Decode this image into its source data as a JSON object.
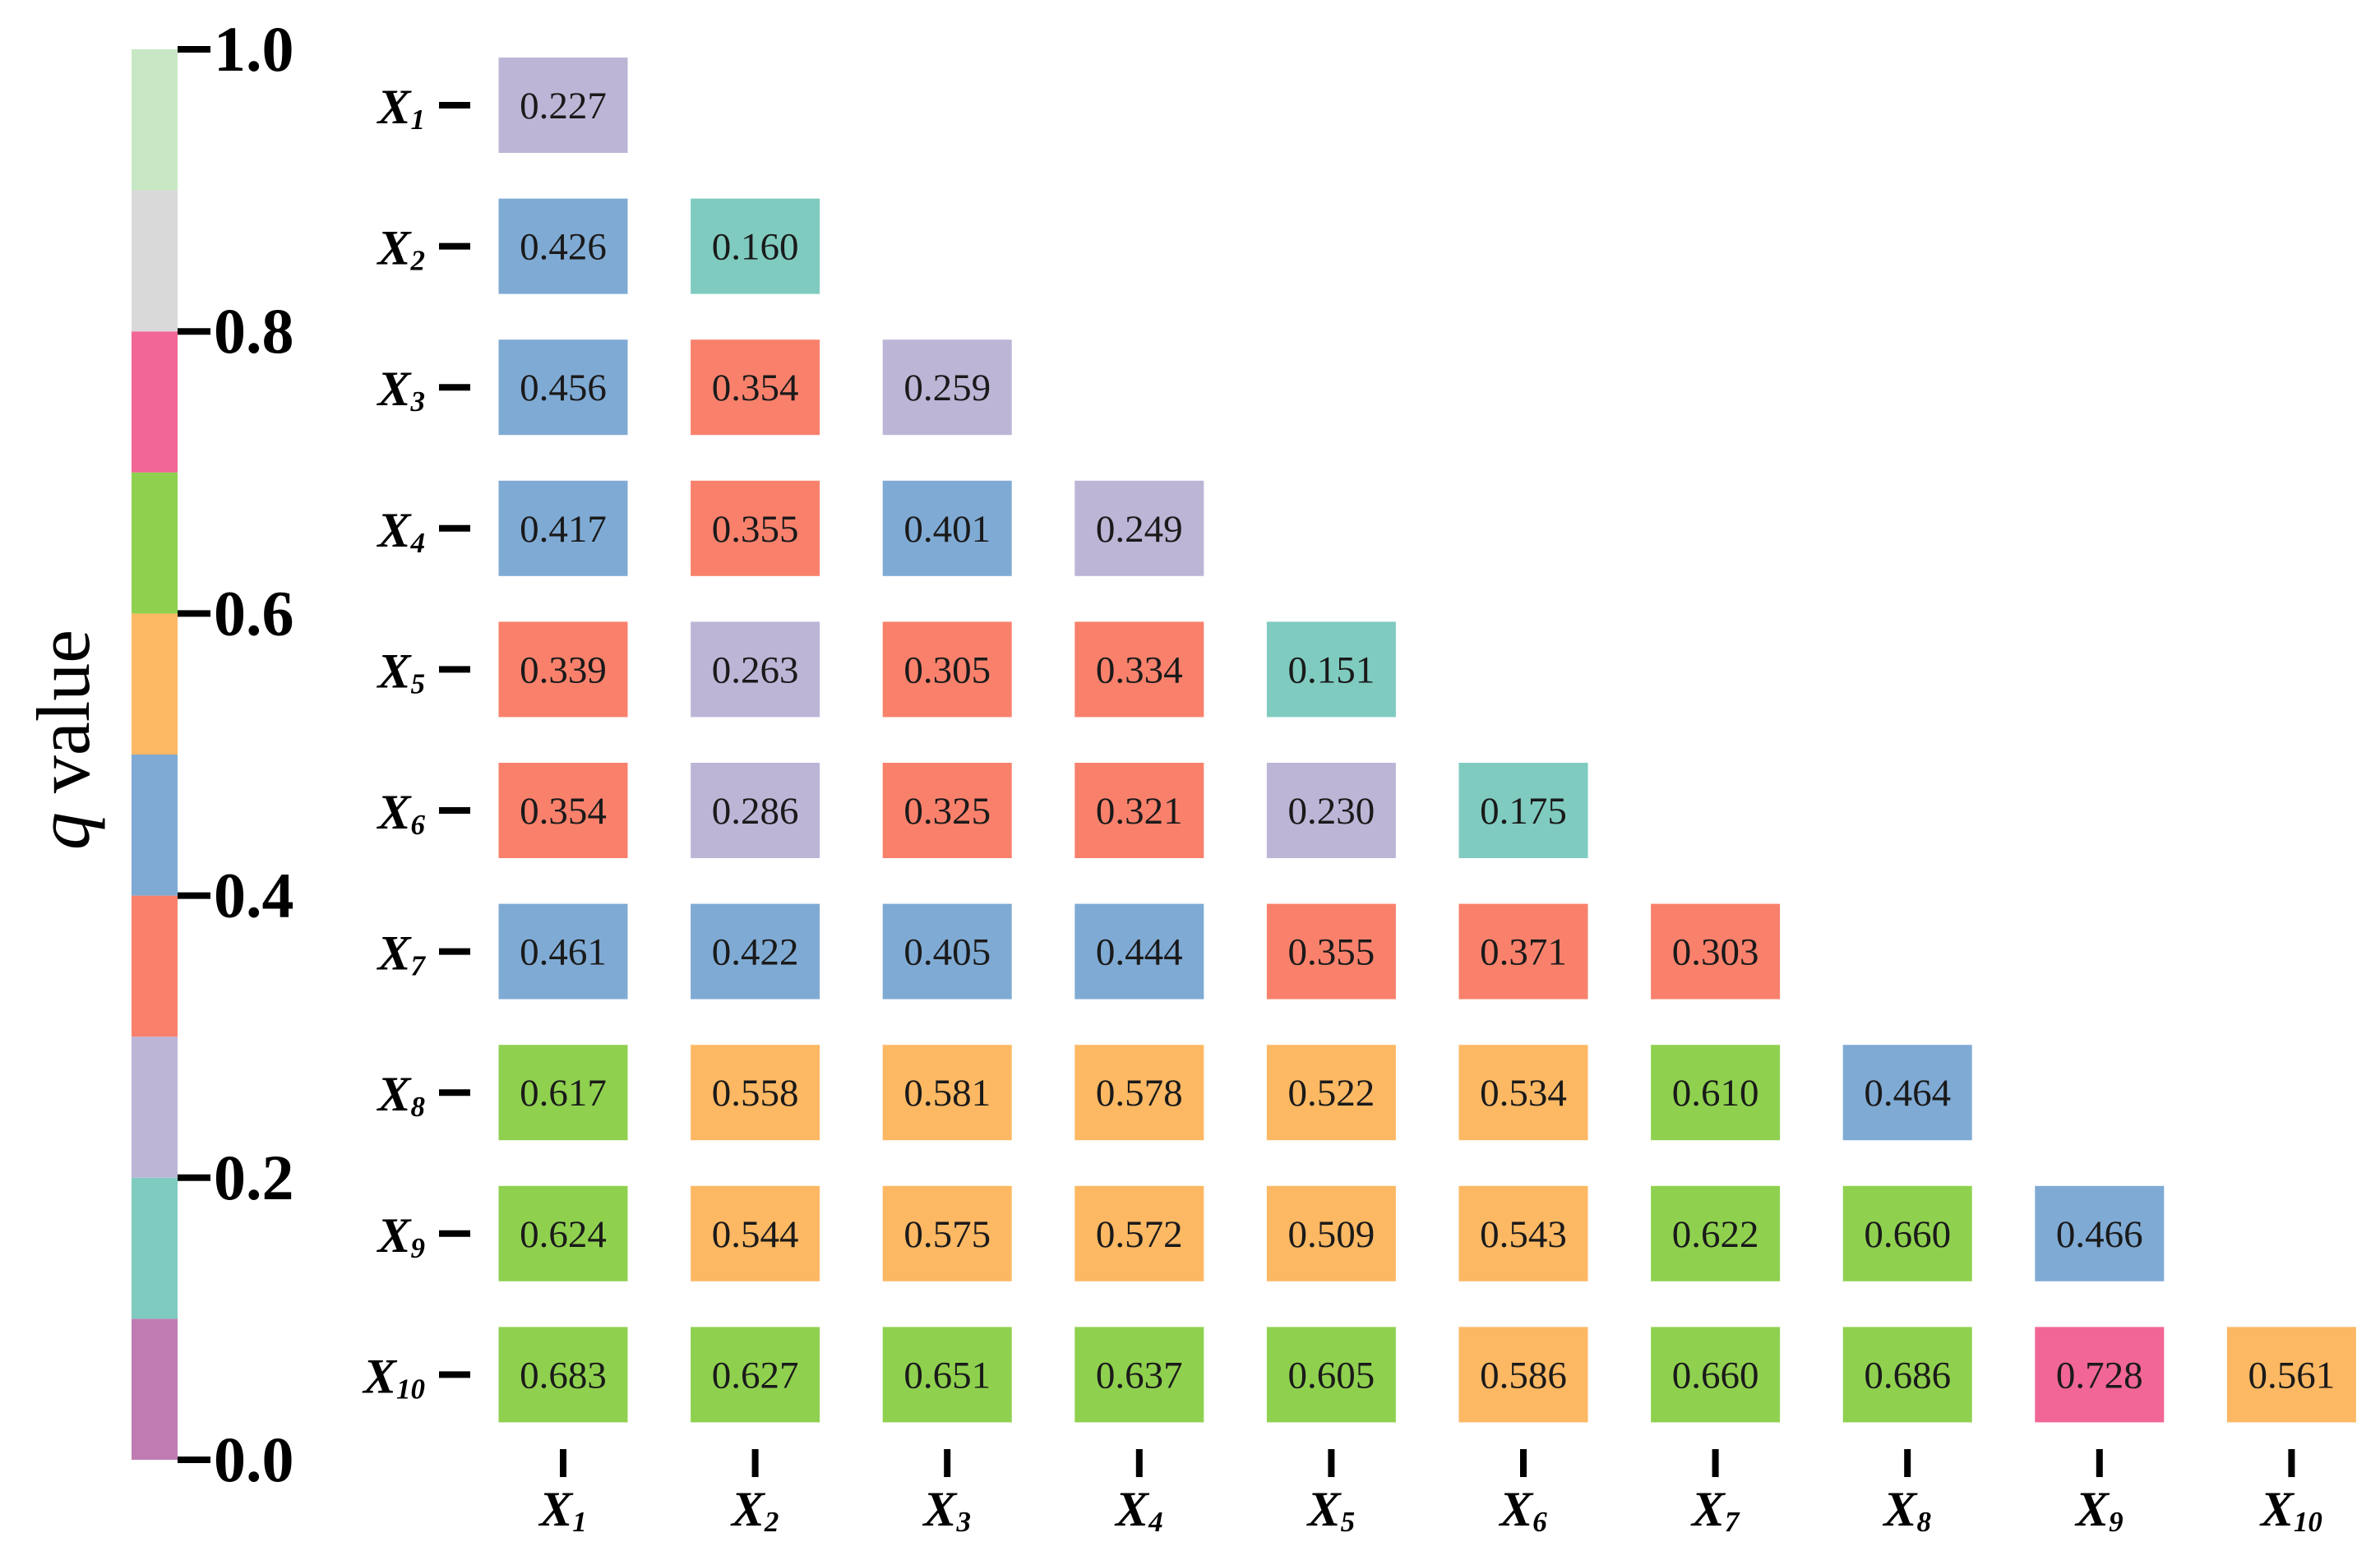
{
  "chart_data": {
    "type": "heatmap",
    "row_labels": [
      "X1",
      "X2",
      "X3",
      "X4",
      "X5",
      "X6",
      "X7",
      "X8",
      "X9",
      "X10"
    ],
    "col_labels": [
      "X1",
      "X2",
      "X3",
      "X4",
      "X5",
      "X6",
      "X7",
      "X8",
      "X9",
      "X10"
    ],
    "values": [
      [
        0.227
      ],
      [
        0.426,
        0.16
      ],
      [
        0.456,
        0.354,
        0.259
      ],
      [
        0.417,
        0.355,
        0.401,
        0.249
      ],
      [
        0.339,
        0.263,
        0.305,
        0.334,
        0.151
      ],
      [
        0.354,
        0.286,
        0.325,
        0.321,
        0.23,
        0.175
      ],
      [
        0.461,
        0.422,
        0.405,
        0.444,
        0.355,
        0.371,
        0.303
      ],
      [
        0.617,
        0.558,
        0.581,
        0.578,
        0.522,
        0.534,
        0.61,
        0.464
      ],
      [
        0.624,
        0.544,
        0.575,
        0.572,
        0.509,
        0.543,
        0.622,
        0.66,
        0.466
      ],
      [
        0.683,
        0.627,
        0.651,
        0.637,
        0.605,
        0.586,
        0.66,
        0.686,
        0.728,
        0.561
      ]
    ],
    "value_format": "0.000",
    "colorbar": {
      "title": "q value",
      "ticks": [
        "0.0",
        "0.2",
        "0.4",
        "0.6",
        "0.8",
        "1.0"
      ],
      "range": [
        0,
        1
      ],
      "bins": [
        {
          "from": 0.0,
          "to": 0.1,
          "color": "#c07cb2"
        },
        {
          "from": 0.1,
          "to": 0.2,
          "color": "#7fcbc0"
        },
        {
          "from": 0.2,
          "to": 0.3,
          "color": "#bdb5d6"
        },
        {
          "from": 0.3,
          "to": 0.4,
          "color": "#f9816c"
        },
        {
          "from": 0.4,
          "to": 0.5,
          "color": "#7faad4"
        },
        {
          "from": 0.5,
          "to": 0.6,
          "color": "#fcb863"
        },
        {
          "from": 0.6,
          "to": 0.7,
          "color": "#8fd14f"
        },
        {
          "from": 0.7,
          "to": 0.8,
          "color": "#f16696"
        },
        {
          "from": 0.8,
          "to": 0.9,
          "color": "#d9d9d9"
        },
        {
          "from": 0.9,
          "to": 1.0,
          "color": "#c8e7c4"
        }
      ]
    }
  }
}
